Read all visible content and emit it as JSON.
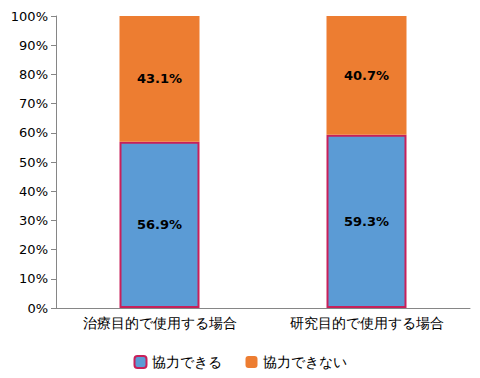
{
  "chart_data": {
    "type": "bar",
    "categories": [
      "治療目的で使用する場合",
      "研究目的で使用する場合"
    ],
    "series": [
      {
        "name": "協力できる",
        "color": "#5B9BD5",
        "values": [
          56.9,
          59.3
        ],
        "value_labels": [
          "56.9%",
          "59.3%"
        ]
      },
      {
        "name": "協力できない",
        "color": "#ED7D31",
        "values": [
          43.1,
          40.7
        ],
        "value_labels": [
          "43.1%",
          "40.7%"
        ]
      }
    ],
    "ylim": [
      0,
      100
    ],
    "yticks": [
      {
        "value": 0,
        "label": "0%"
      },
      {
        "value": 10,
        "label": "10%"
      },
      {
        "value": 20,
        "label": "20%"
      },
      {
        "value": 30,
        "label": "30%"
      },
      {
        "value": 40,
        "label": "40%"
      },
      {
        "value": 50,
        "label": "50%"
      },
      {
        "value": 60,
        "label": "60%"
      },
      {
        "value": 70,
        "label": "70%"
      },
      {
        "value": 80,
        "label": "80%"
      },
      {
        "value": 90,
        "label": "90%"
      },
      {
        "value": 100,
        "label": "100%"
      }
    ],
    "stacked": true,
    "data_labels": true,
    "legend": "bottom",
    "grid": false
  }
}
